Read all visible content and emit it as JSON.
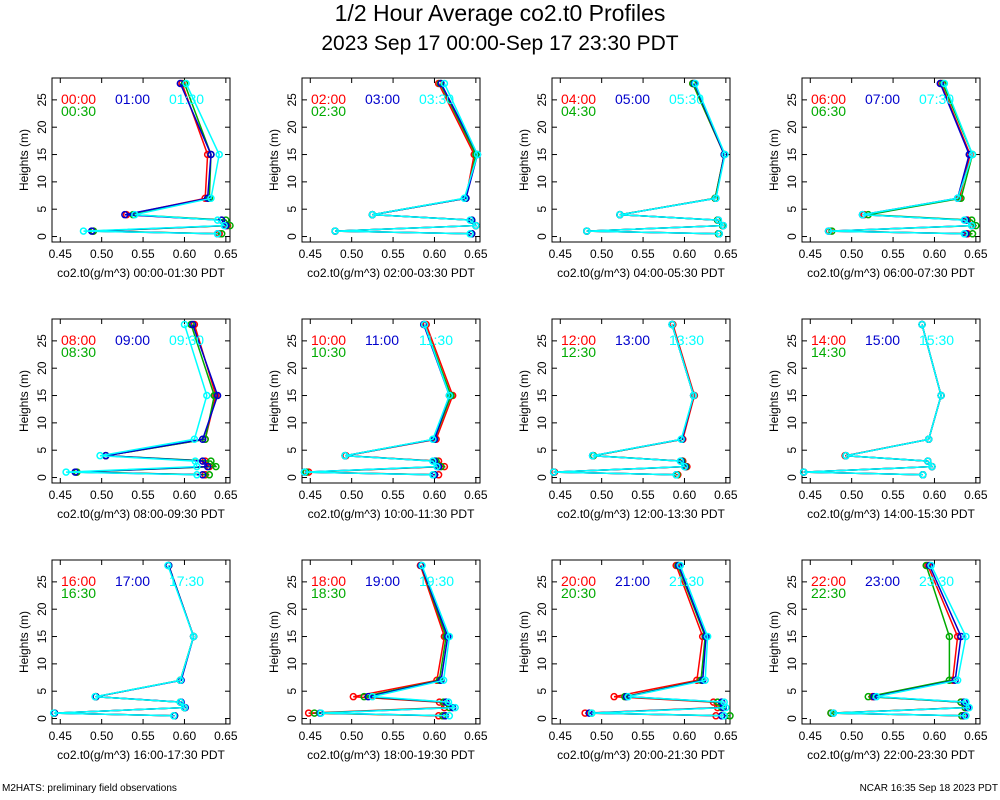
{
  "title": "1/2 Hour Average co2.t0 Profiles",
  "subtitle": "2023 Sep 17 00:00-Sep 17 23:30 PDT",
  "footer_left": "M2HATS: preliminary field observations",
  "footer_right": "NCAR 16:35 Sep 18 2023 PDT",
  "colors": {
    "c1": "#ff0000",
    "c2": "#0000cc",
    "c3": "#00ffff",
    "c4": "#00aa00"
  },
  "chart_data": [
    {
      "type": "line",
      "xlabel": "co2.t0(g/m^3) 00:00-01:30 PDT",
      "ylabel": "Heights (m)",
      "xlim": [
        0.44,
        0.655
      ],
      "ylim": [
        -1,
        29
      ],
      "xticks": [
        "0.45",
        "0.50",
        "0.55",
        "0.60",
        "0.65"
      ],
      "yticks": [
        "0",
        "5",
        "10",
        "15",
        "20",
        "25"
      ],
      "heights": [
        0.5,
        1,
        2,
        3,
        4,
        7,
        15,
        28
      ],
      "series": [
        {
          "name": "00:00",
          "color": "#ff0000",
          "values": [
            0.642,
            0.49,
            0.652,
            0.645,
            0.53,
            0.625,
            0.628,
            0.597
          ]
        },
        {
          "name": "00:30",
          "color": "#00aa00",
          "values": [
            0.645,
            0.49,
            0.655,
            0.65,
            0.538,
            0.63,
            0.632,
            0.6
          ]
        },
        {
          "name": "01:00",
          "color": "#0000cc",
          "values": [
            0.64,
            0.488,
            0.65,
            0.645,
            0.528,
            0.628,
            0.632,
            0.595
          ]
        },
        {
          "name": "01:30",
          "color": "#00ffff",
          "values": [
            0.64,
            0.478,
            0.648,
            0.64,
            0.54,
            0.632,
            0.642,
            0.602
          ]
        }
      ]
    },
    {
      "type": "line",
      "xlabel": "co2.t0(g/m^3) 02:00-03:30 PDT",
      "ylabel": "Heights (m)",
      "xlim": [
        0.44,
        0.655
      ],
      "ylim": [
        -1,
        29
      ],
      "xticks": [
        "0.45",
        "0.50",
        "0.55",
        "0.60",
        "0.65"
      ],
      "yticks": [
        "0",
        "5",
        "10",
        "15",
        "20",
        "25"
      ],
      "heights": [
        0.5,
        1,
        2,
        3,
        4,
        7,
        15,
        28
      ],
      "series": [
        {
          "name": "02:00",
          "color": "#ff0000",
          "values": [
            0.645,
            0.48,
            0.65,
            0.645,
            0.525,
            0.638,
            0.648,
            0.605
          ]
        },
        {
          "name": "02:30",
          "color": "#00aa00",
          "values": [
            0.645,
            0.48,
            0.65,
            0.645,
            0.525,
            0.638,
            0.65,
            0.607
          ]
        },
        {
          "name": "03:00",
          "color": "#0000cc",
          "values": [
            0.645,
            0.48,
            0.65,
            0.645,
            0.525,
            0.638,
            0.652,
            0.608
          ]
        },
        {
          "name": "03:30",
          "color": "#00ffff",
          "values": [
            0.643,
            0.48,
            0.65,
            0.643,
            0.525,
            0.636,
            0.652,
            0.612
          ]
        }
      ]
    },
    {
      "type": "line",
      "xlabel": "co2.t0(g/m^3) 04:00-05:30 PDT",
      "ylabel": "Heights (m)",
      "xlim": [
        0.44,
        0.655
      ],
      "ylim": [
        -1,
        29
      ],
      "xticks": [
        "0.45",
        "0.50",
        "0.55",
        "0.60",
        "0.65"
      ],
      "yticks": [
        "0",
        "5",
        "10",
        "15",
        "20",
        "25"
      ],
      "heights": [
        0.5,
        1,
        2,
        3,
        4,
        7,
        15,
        28
      ],
      "series": [
        {
          "name": "04:00",
          "color": "#ff0000",
          "values": [
            0.641,
            0.482,
            0.646,
            0.64,
            0.522,
            0.637,
            0.648,
            0.61
          ]
        },
        {
          "name": "04:30",
          "color": "#00aa00",
          "values": [
            0.641,
            0.482,
            0.646,
            0.64,
            0.522,
            0.637,
            0.648,
            0.61
          ]
        },
        {
          "name": "05:00",
          "color": "#0000cc",
          "values": [
            0.642,
            0.482,
            0.647,
            0.641,
            0.522,
            0.638,
            0.648,
            0.612
          ]
        },
        {
          "name": "05:30",
          "color": "#00ffff",
          "values": [
            0.642,
            0.482,
            0.647,
            0.641,
            0.522,
            0.638,
            0.649,
            0.613
          ]
        }
      ]
    },
    {
      "type": "line",
      "xlabel": "co2.t0(g/m^3) 06:00-07:30 PDT",
      "ylabel": "Heights (m)",
      "xlim": [
        0.44,
        0.655
      ],
      "ylim": [
        -1,
        29
      ],
      "xticks": [
        "0.45",
        "0.50",
        "0.55",
        "0.60",
        "0.65"
      ],
      "yticks": [
        "0",
        "5",
        "10",
        "15",
        "20",
        "25"
      ],
      "heights": [
        0.5,
        1,
        2,
        3,
        4,
        7,
        15,
        28
      ],
      "series": [
        {
          "name": "06:00",
          "color": "#ff0000",
          "values": [
            0.64,
            0.473,
            0.646,
            0.64,
            0.515,
            0.63,
            0.643,
            0.608
          ]
        },
        {
          "name": "06:30",
          "color": "#00aa00",
          "values": [
            0.646,
            0.476,
            0.65,
            0.645,
            0.52,
            0.632,
            0.646,
            0.61
          ]
        },
        {
          "name": "07:00",
          "color": "#0000cc",
          "values": [
            0.638,
            0.472,
            0.645,
            0.638,
            0.513,
            0.628,
            0.642,
            0.607
          ]
        },
        {
          "name": "07:30",
          "color": "#00ffff",
          "values": [
            0.636,
            0.472,
            0.645,
            0.636,
            0.513,
            0.628,
            0.646,
            0.612
          ]
        }
      ]
    },
    {
      "type": "line",
      "xlabel": "co2.t0(g/m^3) 08:00-09:30 PDT",
      "ylabel": "Heights (m)",
      "xlim": [
        0.44,
        0.655
      ],
      "ylim": [
        -1,
        29
      ],
      "xticks": [
        "0.45",
        "0.50",
        "0.55",
        "0.60",
        "0.65"
      ],
      "yticks": [
        "0",
        "5",
        "10",
        "15",
        "20",
        "25"
      ],
      "heights": [
        0.5,
        1,
        2,
        3,
        4,
        7,
        15,
        28
      ],
      "series": [
        {
          "name": "08:00",
          "color": "#ff0000",
          "values": [
            0.625,
            0.47,
            0.63,
            0.625,
            0.505,
            0.625,
            0.638,
            0.612
          ]
        },
        {
          "name": "08:30",
          "color": "#00aa00",
          "values": [
            0.63,
            0.47,
            0.638,
            0.632,
            0.505,
            0.625,
            0.636,
            0.608
          ]
        },
        {
          "name": "09:00",
          "color": "#0000cc",
          "values": [
            0.622,
            0.468,
            0.628,
            0.622,
            0.505,
            0.622,
            0.64,
            0.61
          ]
        },
        {
          "name": "09:30",
          "color": "#00ffff",
          "values": [
            0.615,
            0.457,
            0.615,
            0.613,
            0.498,
            0.612,
            0.627,
            0.6
          ]
        }
      ]
    },
    {
      "type": "line",
      "xlabel": "co2.t0(g/m^3) 10:00-11:30 PDT",
      "ylabel": "Heights (m)",
      "xlim": [
        0.44,
        0.655
      ],
      "ylim": [
        -1,
        29
      ],
      "xticks": [
        "0.45",
        "0.50",
        "0.55",
        "0.60",
        "0.65"
      ],
      "yticks": [
        "0",
        "5",
        "10",
        "15",
        "20",
        "25"
      ],
      "heights": [
        0.5,
        1,
        2,
        3,
        4,
        7,
        15,
        28
      ],
      "series": [
        {
          "name": "10:00",
          "color": "#ff0000",
          "values": [
            0.605,
            0.448,
            0.612,
            0.605,
            0.493,
            0.602,
            0.622,
            0.59
          ]
        },
        {
          "name": "10:30",
          "color": "#00aa00",
          "values": [
            0.6,
            0.445,
            0.608,
            0.602,
            0.492,
            0.6,
            0.62,
            0.588
          ]
        },
        {
          "name": "11:00",
          "color": "#0000cc",
          "values": [
            0.6,
            0.443,
            0.605,
            0.6,
            0.492,
            0.6,
            0.618,
            0.587
          ]
        },
        {
          "name": "11:30",
          "color": "#00ffff",
          "values": [
            0.598,
            0.443,
            0.603,
            0.598,
            0.492,
            0.598,
            0.618,
            0.588
          ]
        }
      ]
    },
    {
      "type": "line",
      "xlabel": "co2.t0(g/m^3) 12:00-13:30 PDT",
      "ylabel": "Heights (m)",
      "xlim": [
        0.44,
        0.655
      ],
      "ylim": [
        -1,
        29
      ],
      "xticks": [
        "0.45",
        "0.50",
        "0.55",
        "0.60",
        "0.65"
      ],
      "yticks": [
        "0",
        "5",
        "10",
        "15",
        "20",
        "25"
      ],
      "heights": [
        0.5,
        1,
        2,
        3,
        4,
        7,
        15,
        28
      ],
      "series": [
        {
          "name": "12:00",
          "color": "#ff0000",
          "values": [
            0.592,
            0.443,
            0.603,
            0.598,
            0.49,
            0.598,
            0.612,
            0.586
          ]
        },
        {
          "name": "12:30",
          "color": "#00aa00",
          "values": [
            0.591,
            0.442,
            0.602,
            0.597,
            0.49,
            0.597,
            0.611,
            0.585
          ]
        },
        {
          "name": "13:00",
          "color": "#0000cc",
          "values": [
            0.59,
            0.442,
            0.601,
            0.596,
            0.489,
            0.597,
            0.611,
            0.585
          ]
        },
        {
          "name": "13:30",
          "color": "#00ffff",
          "values": [
            0.59,
            0.442,
            0.6,
            0.595,
            0.489,
            0.596,
            0.611,
            0.585
          ]
        }
      ]
    },
    {
      "type": "line",
      "xlabel": "co2.t0(g/m^3) 14:00-15:30 PDT",
      "ylabel": "Heights (m)",
      "xlim": [
        0.44,
        0.655
      ],
      "ylim": [
        -1,
        29
      ],
      "xticks": [
        "0.45",
        "0.50",
        "0.55",
        "0.60",
        "0.65"
      ],
      "yticks": [
        "0",
        "5",
        "10",
        "15",
        "20",
        "25"
      ],
      "heights": [
        0.5,
        1,
        2,
        3,
        4,
        7,
        15,
        28
      ],
      "series": [
        {
          "name": "14:00",
          "color": "#ff0000",
          "values": [
            0.586,
            0.442,
            0.597,
            0.592,
            0.492,
            0.593,
            0.608,
            0.585
          ]
        },
        {
          "name": "14:30",
          "color": "#00aa00",
          "values": [
            0.586,
            0.442,
            0.597,
            0.592,
            0.493,
            0.593,
            0.608,
            0.585
          ]
        },
        {
          "name": "15:00",
          "color": "#0000cc",
          "values": [
            0.586,
            0.442,
            0.597,
            0.592,
            0.493,
            0.593,
            0.608,
            0.585
          ]
        },
        {
          "name": "15:30",
          "color": "#00ffff",
          "values": [
            0.586,
            0.442,
            0.597,
            0.592,
            0.493,
            0.593,
            0.608,
            0.585
          ]
        }
      ]
    },
    {
      "type": "line",
      "xlabel": "co2.t0(g/m^3) 16:00-17:30 PDT",
      "ylabel": "Heights (m)",
      "xlim": [
        0.44,
        0.655
      ],
      "ylim": [
        -1,
        29
      ],
      "xticks": [
        "0.45",
        "0.50",
        "0.55",
        "0.60",
        "0.65"
      ],
      "yticks": [
        "0",
        "5",
        "10",
        "15",
        "20",
        "25"
      ],
      "heights": [
        0.5,
        1,
        2,
        3,
        4,
        7,
        15,
        28
      ],
      "series": [
        {
          "name": "16:00",
          "color": "#ff0000",
          "values": [
            0.588,
            0.443,
            0.6,
            0.595,
            0.493,
            0.595,
            0.611,
            0.581
          ]
        },
        {
          "name": "16:30",
          "color": "#00aa00",
          "values": [
            0.588,
            0.443,
            0.6,
            0.595,
            0.493,
            0.595,
            0.611,
            0.581
          ]
        },
        {
          "name": "17:00",
          "color": "#0000cc",
          "values": [
            0.588,
            0.443,
            0.601,
            0.596,
            0.493,
            0.596,
            0.611,
            0.581
          ]
        },
        {
          "name": "17:30",
          "color": "#00ffff",
          "values": [
            0.587,
            0.442,
            0.6,
            0.595,
            0.492,
            0.595,
            0.611,
            0.58
          ]
        }
      ]
    },
    {
      "type": "line",
      "xlabel": "co2.t0(g/m^3) 18:00-19:30 PDT",
      "ylabel": "Heights (m)",
      "xlim": [
        0.44,
        0.655
      ],
      "ylim": [
        -1,
        29
      ],
      "xticks": [
        "0.45",
        "0.50",
        "0.55",
        "0.60",
        "0.65"
      ],
      "yticks": [
        "0",
        "5",
        "10",
        "15",
        "20",
        "25"
      ],
      "heights": [
        0.5,
        1,
        2,
        3,
        4,
        7,
        15,
        28
      ],
      "series": [
        {
          "name": "18:00",
          "color": "#ff0000",
          "values": [
            0.605,
            0.448,
            0.612,
            0.606,
            0.502,
            0.603,
            0.612,
            0.583
          ]
        },
        {
          "name": "18:30",
          "color": "#00aa00",
          "values": [
            0.61,
            0.455,
            0.618,
            0.611,
            0.515,
            0.606,
            0.614,
            0.584
          ]
        },
        {
          "name": "19:00",
          "color": "#0000cc",
          "values": [
            0.613,
            0.462,
            0.622,
            0.614,
            0.52,
            0.608,
            0.616,
            0.584
          ]
        },
        {
          "name": "19:30",
          "color": "#00ffff",
          "values": [
            0.618,
            0.463,
            0.625,
            0.617,
            0.525,
            0.611,
            0.618,
            0.585
          ]
        }
      ]
    },
    {
      "type": "line",
      "xlabel": "co2.t0(g/m^3) 20:00-21:30 PDT",
      "ylabel": "Heights (m)",
      "xlim": [
        0.44,
        0.655
      ],
      "ylim": [
        -1,
        29
      ],
      "xticks": [
        "0.45",
        "0.50",
        "0.55",
        "0.60",
        "0.65"
      ],
      "yticks": [
        "0",
        "5",
        "10",
        "15",
        "20",
        "25"
      ],
      "heights": [
        0.5,
        1,
        2,
        3,
        4,
        7,
        15,
        28
      ],
      "series": [
        {
          "name": "20:00",
          "color": "#ff0000",
          "values": [
            0.638,
            0.48,
            0.64,
            0.635,
            0.515,
            0.615,
            0.622,
            0.59
          ]
        },
        {
          "name": "20:30",
          "color": "#00aa00",
          "values": [
            0.655,
            0.488,
            0.645,
            0.64,
            0.528,
            0.62,
            0.625,
            0.592
          ]
        },
        {
          "name": "21:00",
          "color": "#0000cc",
          "values": [
            0.645,
            0.485,
            0.647,
            0.645,
            0.53,
            0.622,
            0.626,
            0.593
          ]
        },
        {
          "name": "21:30",
          "color": "#00ffff",
          "values": [
            0.648,
            0.488,
            0.65,
            0.648,
            0.532,
            0.625,
            0.628,
            0.595
          ]
        }
      ]
    },
    {
      "type": "line",
      "xlabel": "co2.t0(g/m^3) 22:00-23:30 PDT",
      "ylabel": "Heights (m)",
      "xlim": [
        0.44,
        0.655
      ],
      "ylim": [
        -1,
        29
      ],
      "xticks": [
        "0.45",
        "0.50",
        "0.55",
        "0.60",
        "0.65"
      ],
      "yticks": [
        "0",
        "5",
        "10",
        "15",
        "20",
        "25"
      ],
      "heights": [
        0.5,
        1,
        2,
        3,
        4,
        7,
        15,
        28
      ],
      "series": [
        {
          "name": "22:00",
          "color": "#ff0000",
          "values": [
            0.633,
            0.475,
            0.637,
            0.632,
            0.525,
            0.622,
            0.628,
            0.592
          ]
        },
        {
          "name": "22:30",
          "color": "#00aa00",
          "values": [
            0.633,
            0.475,
            0.637,
            0.632,
            0.52,
            0.618,
            0.618,
            0.59
          ]
        },
        {
          "name": "23:00",
          "color": "#0000cc",
          "values": [
            0.636,
            0.478,
            0.64,
            0.636,
            0.527,
            0.625,
            0.632,
            0.594
          ]
        },
        {
          "name": "23:30",
          "color": "#00ffff",
          "values": [
            0.638,
            0.478,
            0.642,
            0.638,
            0.53,
            0.628,
            0.638,
            0.596
          ]
        }
      ]
    }
  ]
}
